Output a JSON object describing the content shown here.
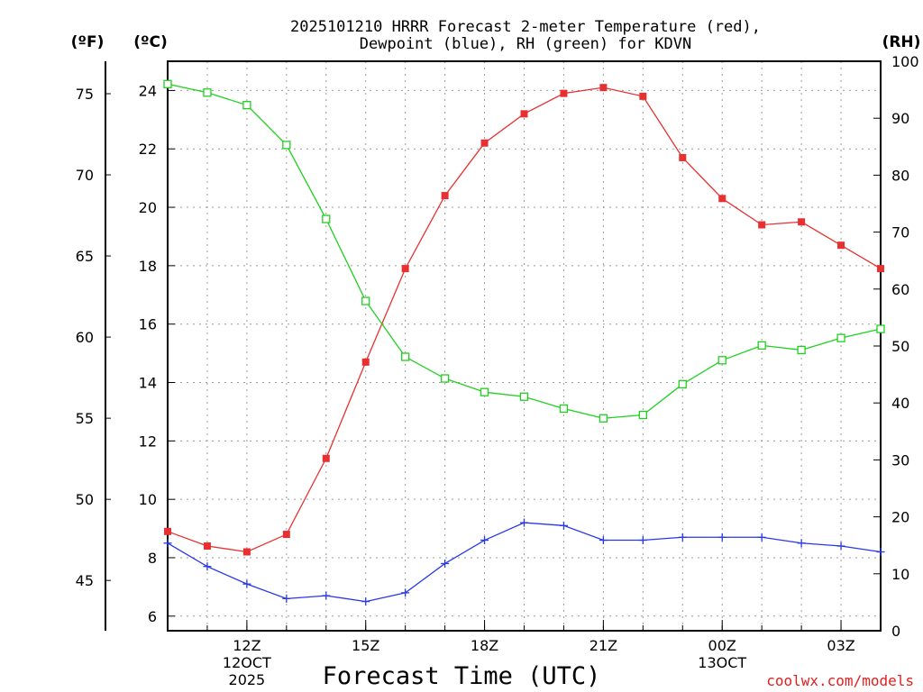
{
  "chart_data": {
    "type": "line",
    "title_line1": "2025101210 HRRR Forecast 2-meter Temperature (red),",
    "title_line2": "Dewpoint (blue), RH (green) for KDVN",
    "xlabel": "Forecast Time (UTC)",
    "credit": "coolwx.com/models",
    "units": {
      "fahrenheit": "(ºF)",
      "celsius": "(ºC)",
      "rh": "(RH)"
    },
    "x_hours": [
      10,
      11,
      12,
      13,
      14,
      15,
      16,
      17,
      18,
      19,
      20,
      21,
      22,
      23,
      24,
      25,
      26,
      27,
      28
    ],
    "xlim": [
      10,
      28
    ],
    "x_ticks": [
      {
        "hour": 12,
        "lines": [
          "12Z",
          "12OCT",
          "2025"
        ]
      },
      {
        "hour": 15,
        "lines": [
          "15Z"
        ]
      },
      {
        "hour": 18,
        "lines": [
          "18Z"
        ]
      },
      {
        "hour": 21,
        "lines": [
          "21Z"
        ]
      },
      {
        "hour": 24,
        "lines": [
          "00Z",
          "13OCT"
        ]
      },
      {
        "hour": 27,
        "lines": [
          "03Z"
        ]
      }
    ],
    "celsius_ylim": [
      5.5,
      25
    ],
    "celsius_ticks": [
      6,
      8,
      10,
      12,
      14,
      16,
      18,
      20,
      22,
      24
    ],
    "fahrenheit_ticks": [
      45,
      50,
      55,
      60,
      65,
      70,
      75
    ],
    "rh_ylim": [
      0,
      100
    ],
    "rh_ticks": [
      0,
      10,
      20,
      30,
      40,
      50,
      60,
      70,
      80,
      90,
      100
    ],
    "series": [
      {
        "name": "Temperature",
        "units": "C",
        "color": "#e83030",
        "marker": "filled-square",
        "values": [
          8.9,
          8.4,
          8.2,
          8.8,
          11.4,
          14.7,
          17.9,
          20.4,
          22.2,
          23.2,
          23.9,
          24.1,
          23.8,
          21.7,
          20.3,
          19.4,
          19.5,
          18.7,
          17.9
        ]
      },
      {
        "name": "Dewpoint",
        "units": "C",
        "color": "#2838e8",
        "marker": "plus",
        "values": [
          8.5,
          7.7,
          7.1,
          6.6,
          6.7,
          6.5,
          6.8,
          7.8,
          8.6,
          9.2,
          9.1,
          8.6,
          8.6,
          8.7,
          8.7,
          8.7,
          8.5,
          8.4,
          8.2
        ]
      },
      {
        "name": "RH",
        "units": "%",
        "color": "#20d020",
        "marker": "open-square",
        "values": [
          96,
          94.5,
          92.3,
          85.3,
          72.3,
          57.9,
          48.1,
          44.3,
          41.9,
          41.1,
          39,
          37.3,
          37.9,
          43.3,
          47.5,
          50.1,
          49.3,
          51.4,
          53
        ]
      }
    ]
  }
}
